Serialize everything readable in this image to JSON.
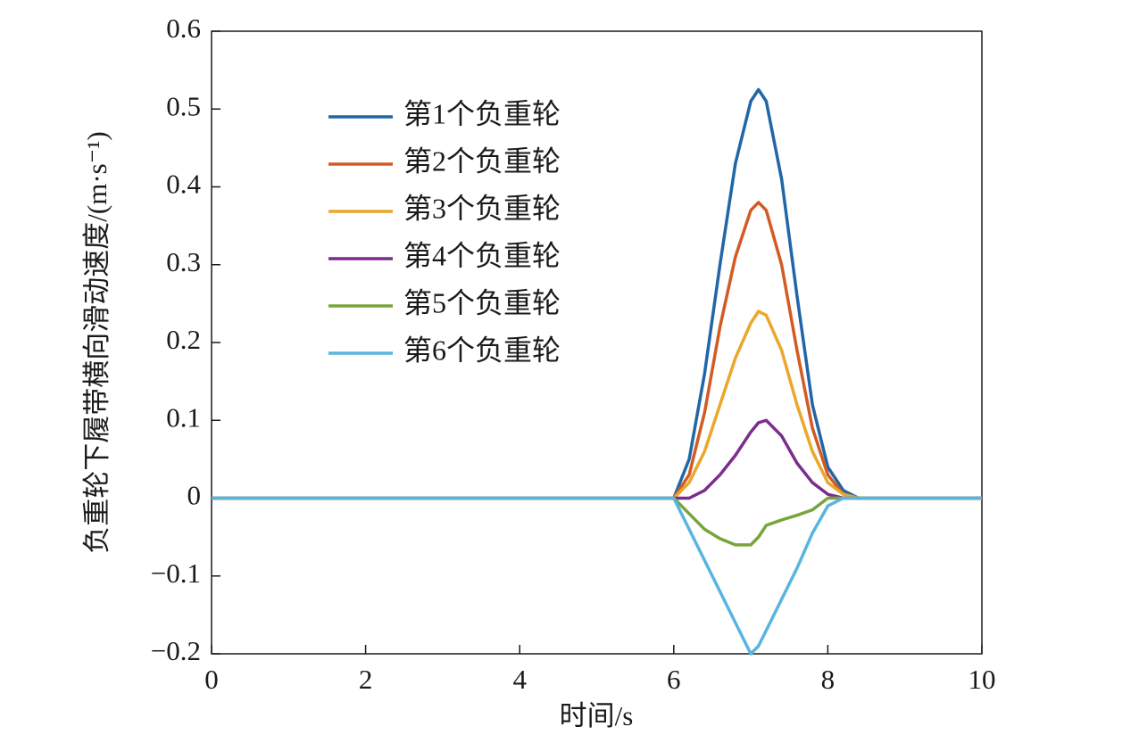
{
  "chart_data": {
    "type": "line",
    "xlabel": "时间/s",
    "ylabel": "负重轮下履带横向滑动速度/(m·s⁻¹)",
    "x": [
      0,
      6,
      6.2,
      6.4,
      6.6,
      6.8,
      7.0,
      7.1,
      7.2,
      7.4,
      7.6,
      7.8,
      8.0,
      8.2,
      8.4,
      10
    ],
    "series": [
      {
        "name": "第1个负重轮",
        "color": "#2066a8",
        "values": [
          0,
          0,
          0.05,
          0.16,
          0.3,
          0.43,
          0.51,
          0.525,
          0.51,
          0.41,
          0.26,
          0.12,
          0.04,
          0.01,
          0,
          0
        ]
      },
      {
        "name": "第2个负重轮",
        "color": "#d35b23",
        "values": [
          0,
          0,
          0.03,
          0.11,
          0.22,
          0.31,
          0.37,
          0.38,
          0.37,
          0.3,
          0.19,
          0.09,
          0.03,
          0.005,
          0,
          0
        ]
      },
      {
        "name": "第3个负重轮",
        "color": "#eba72a",
        "values": [
          0,
          0,
          0.02,
          0.06,
          0.12,
          0.18,
          0.225,
          0.24,
          0.235,
          0.19,
          0.12,
          0.06,
          0.02,
          0.005,
          0,
          0
        ]
      },
      {
        "name": "第4个负重轮",
        "color": "#7b2d8e",
        "values": [
          0,
          0,
          0,
          0.01,
          0.03,
          0.055,
          0.085,
          0.097,
          0.1,
          0.08,
          0.045,
          0.02,
          0.005,
          0,
          0,
          0
        ]
      },
      {
        "name": "第5个负重轮",
        "color": "#77a53a",
        "values": [
          0,
          0,
          -0.02,
          -0.04,
          -0.052,
          -0.06,
          -0.06,
          -0.05,
          -0.035,
          -0.028,
          -0.022,
          -0.015,
          0,
          0,
          0,
          0
        ]
      },
      {
        "name": "第6个负重轮",
        "color": "#5ab4e0",
        "values": [
          0,
          0,
          -0.04,
          -0.08,
          -0.12,
          -0.16,
          -0.2,
          -0.19,
          -0.17,
          -0.13,
          -0.09,
          -0.045,
          -0.01,
          0,
          0,
          0
        ]
      }
    ],
    "xlim": [
      0,
      10
    ],
    "xticks": [
      0,
      2,
      4,
      6,
      8,
      10
    ],
    "ylim": [
      -0.2,
      0.6
    ],
    "yticks": [
      {
        "value": -0.2,
        "label": "−0.2"
      },
      {
        "value": -0.1,
        "label": "−0.1"
      },
      0,
      0.1,
      0.2,
      0.3,
      0.4,
      0.5,
      0.6
    ]
  }
}
